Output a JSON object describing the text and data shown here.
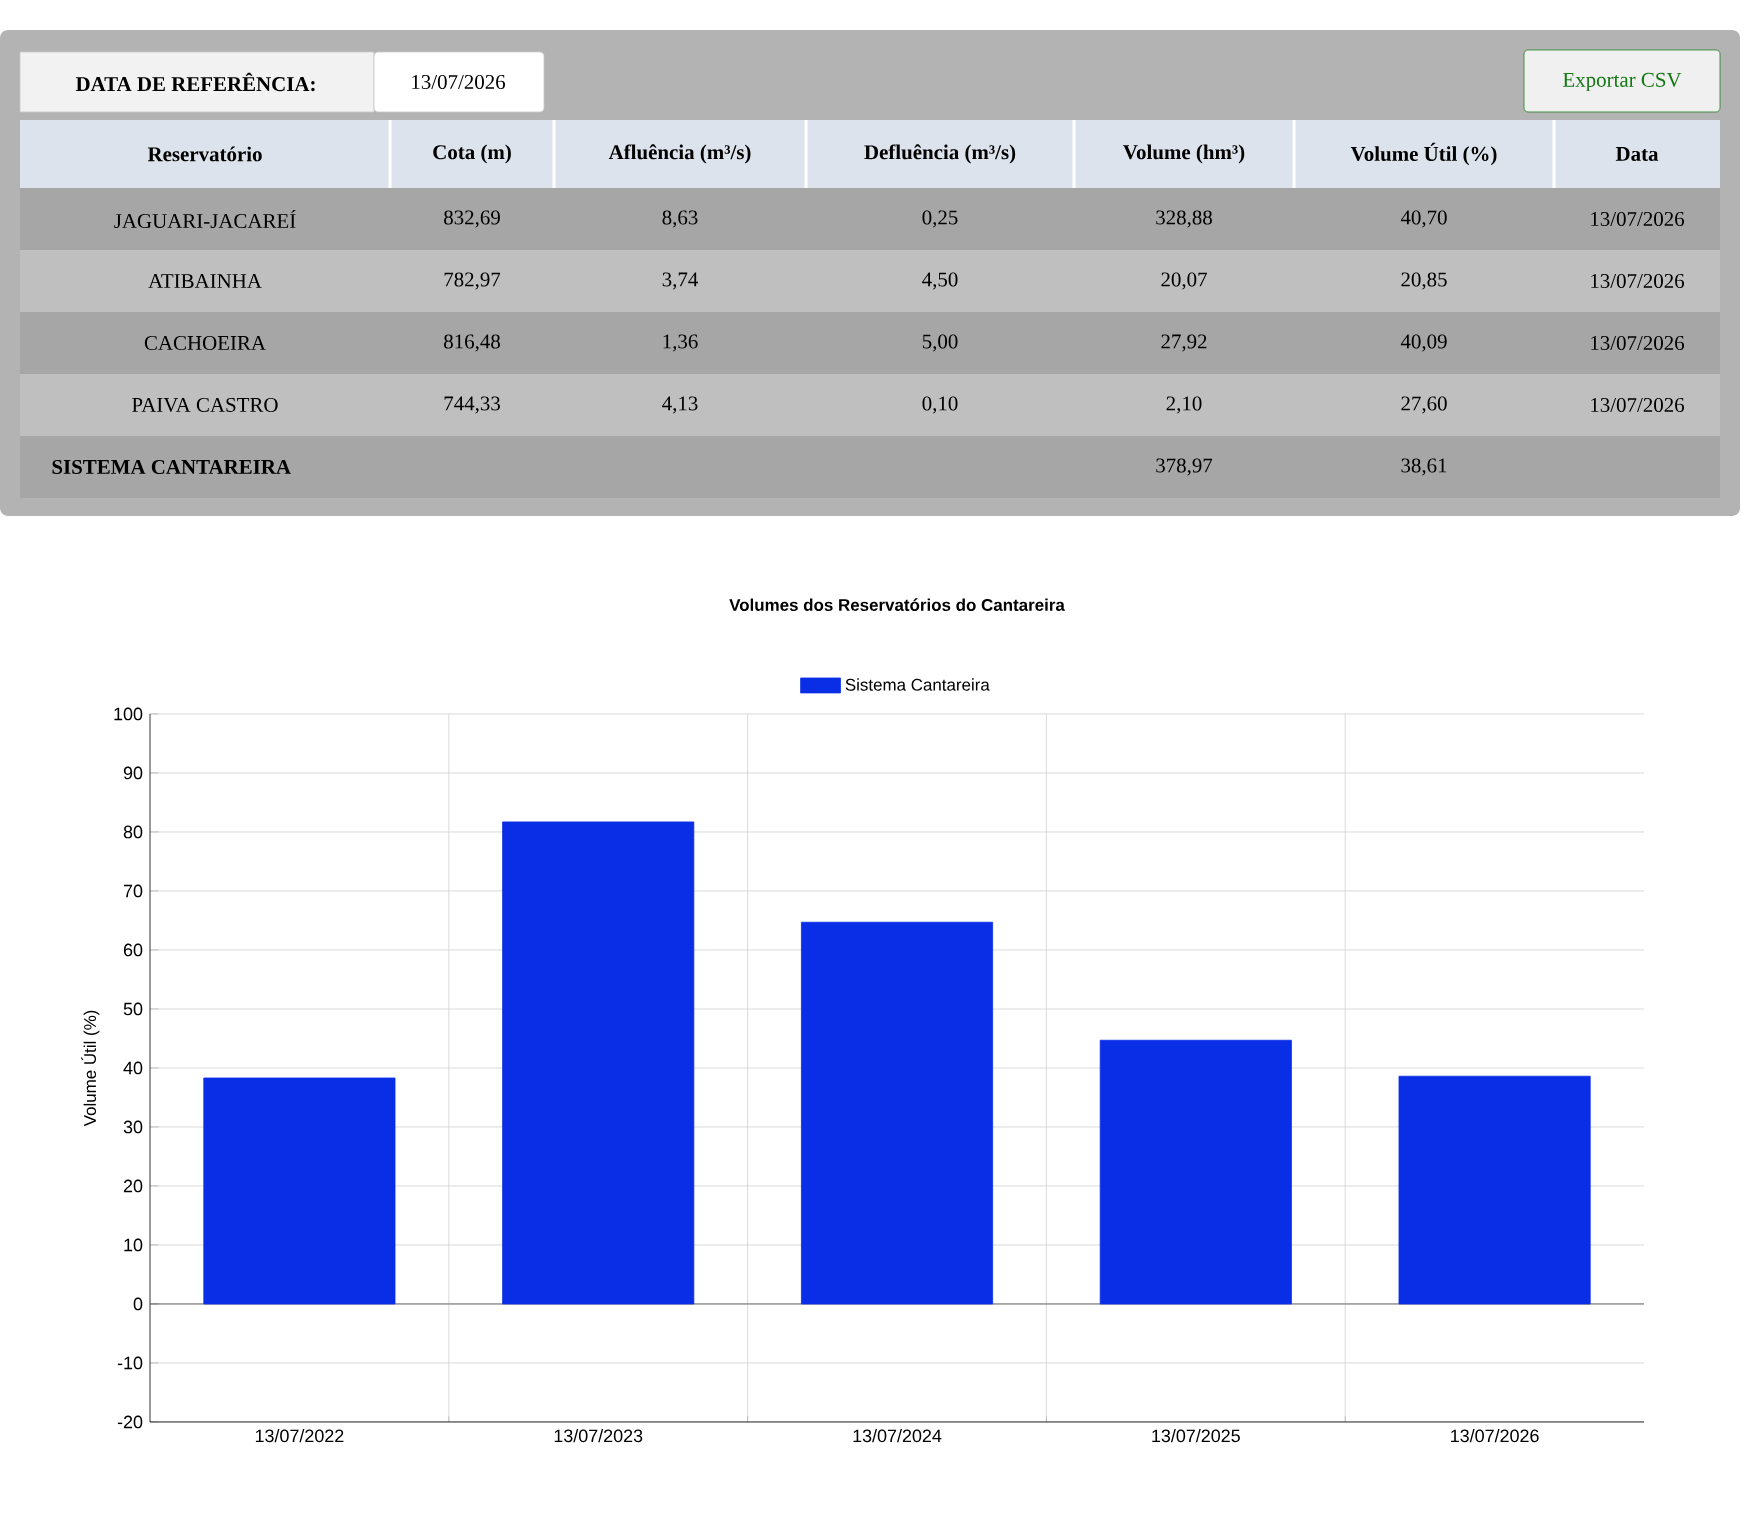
{
  "chart_data": [
    {
      "type": "other",
      "title": "DATA DE REFERÊNCIA:",
      "subtitle": "13/07/2026",
      "annotations": [
        "Exportar CSV"
      ],
      "categories": [
        "Reservatório",
        "Cota (m)",
        "Afluência (m³/s)",
        "Defluência (m³/s)",
        "Volume (hm³)",
        "Volume Útil (%)",
        "Data"
      ],
      "cell_labels": [
        [
          "JAGUARI-JACAREÍ",
          "832,69",
          "8,63",
          "0,25",
          "328,88",
          "40,70",
          "13/07/2026"
        ],
        [
          "ATIBAINHA",
          "782,97",
          "3,74",
          "4,50",
          "20,07",
          "20,85",
          "13/07/2026"
        ],
        [
          "CACHOEIRA",
          "816,48",
          "1,36",
          "5,00",
          "27,92",
          "40,09",
          "13/07/2026"
        ],
        [
          "PAIVA CASTRO",
          "744,33",
          "4,13",
          "0,10",
          "2,10",
          "27,60",
          "13/07/2026"
        ],
        [
          "SISTEMA CANTAREIRA",
          null,
          null,
          null,
          "378,97",
          "38,61",
          null
        ]
      ]
    },
    {
      "type": "bar",
      "title": "Volumes dos Reservatórios do Cantareira",
      "ylabel": "Volume Útil (%)",
      "categories": [
        "13/07/2022",
        "13/07/2023",
        "13/07/2024",
        "13/07/2025",
        "13/07/2026"
      ],
      "series": [
        {
          "name": "Sistema Cantareira",
          "color": "#0a2ee6",
          "values": [
            38.3,
            81.7,
            64.7,
            44.7,
            38.6
          ]
        }
      ],
      "ylim": [
        -20,
        100
      ],
      "yticks": [
        -20,
        -10,
        0,
        10,
        20,
        30,
        40,
        50,
        60,
        70,
        80,
        90,
        100
      ],
      "grid": true,
      "legend": "top"
    }
  ]
}
